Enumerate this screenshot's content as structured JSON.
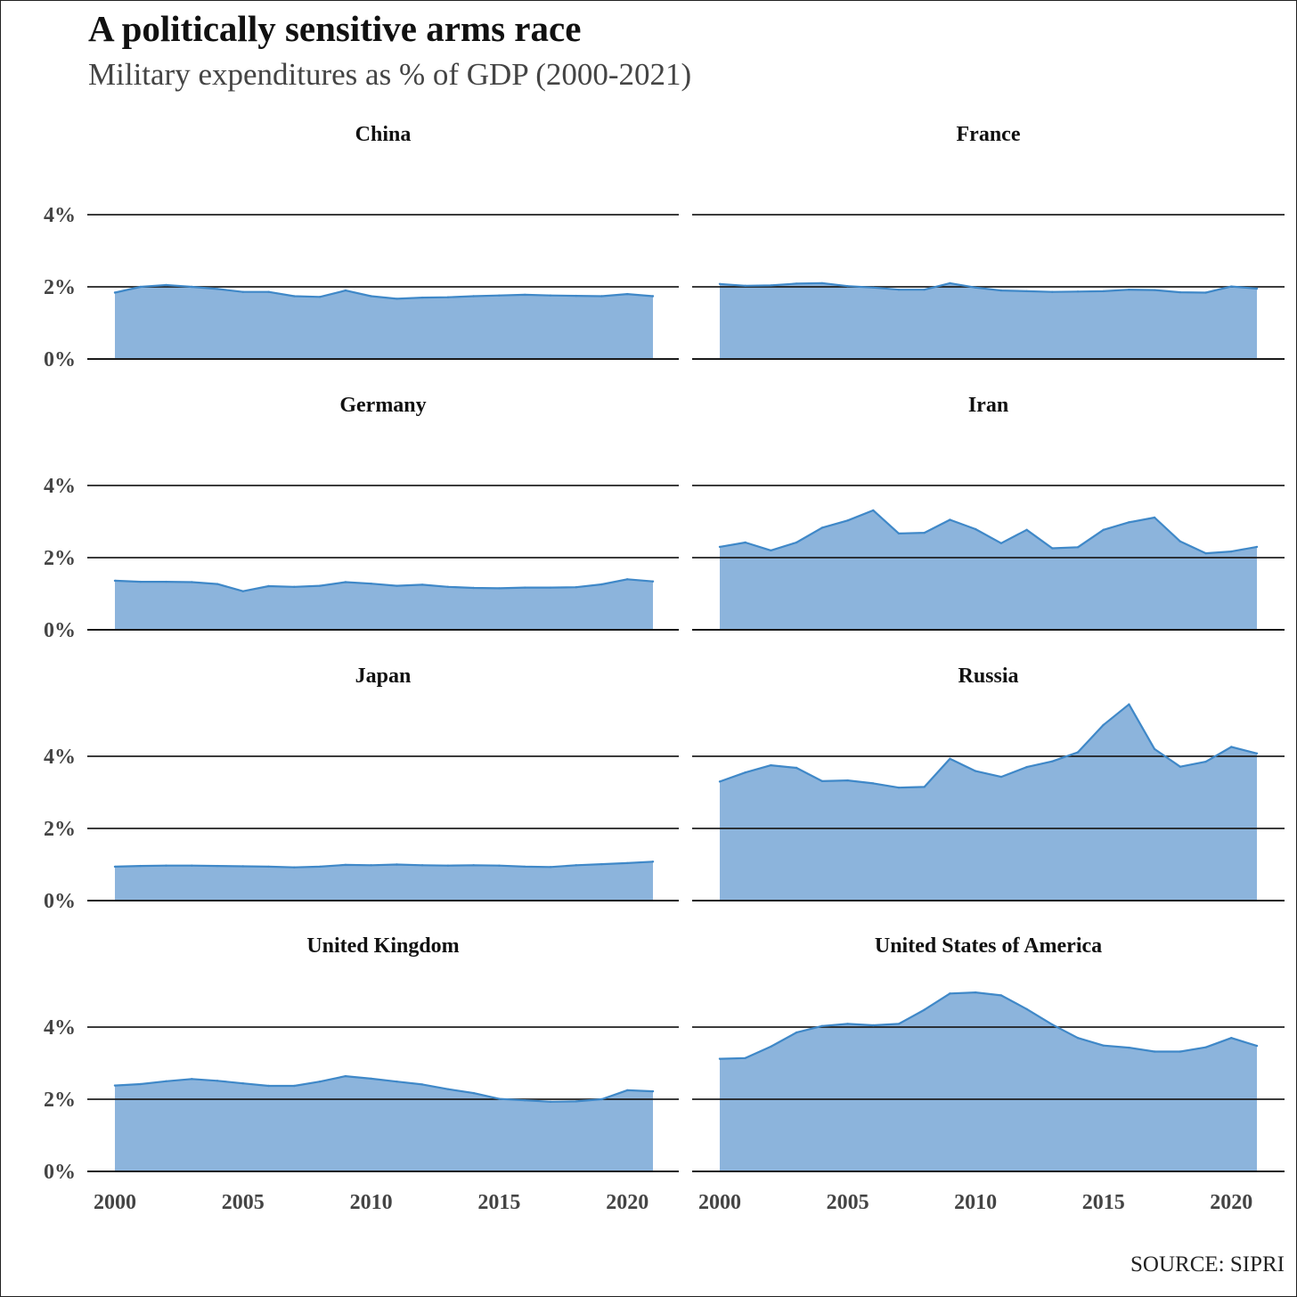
{
  "title": "A politically sensitive arms race",
  "subtitle": "Military expenditures as % of GDP (2000-2021)",
  "source": "SOURCE: SIPRI",
  "colors": {
    "area": "#8cb4dc",
    "line": "#3f88c8",
    "grid": "#1a1a1a"
  },
  "chart_data": {
    "type": "area",
    "layout": "facet-grid-2-columns",
    "x": [
      2000,
      2001,
      2002,
      2003,
      2004,
      2005,
      2006,
      2007,
      2008,
      2009,
      2010,
      2011,
      2012,
      2013,
      2014,
      2015,
      2016,
      2017,
      2018,
      2019,
      2020,
      2021
    ],
    "x_ticks": [
      2000,
      2005,
      2010,
      2015,
      2020
    ],
    "x_tick_labels": [
      "2000",
      "2005",
      "2010",
      "2015",
      "2020"
    ],
    "ylim": [
      0,
      4
    ],
    "y_ticks": [
      0,
      2,
      4
    ],
    "y_tick_labels": [
      "0%",
      "2%",
      "4%"
    ],
    "grid": true,
    "panels": [
      {
        "name": "China",
        "values": [
          1.84,
          2.0,
          2.05,
          2.0,
          1.94,
          1.86,
          1.86,
          1.74,
          1.72,
          1.9,
          1.74,
          1.67,
          1.7,
          1.71,
          1.74,
          1.76,
          1.78,
          1.76,
          1.75,
          1.74,
          1.8,
          1.74
        ]
      },
      {
        "name": "France",
        "values": [
          2.08,
          2.03,
          2.04,
          2.09,
          2.1,
          2.02,
          1.98,
          1.92,
          1.92,
          2.1,
          1.98,
          1.9,
          1.88,
          1.86,
          1.87,
          1.88,
          1.92,
          1.91,
          1.85,
          1.84,
          2.01,
          1.95
        ]
      },
      {
        "name": "Germany",
        "values": [
          1.36,
          1.33,
          1.33,
          1.32,
          1.27,
          1.07,
          1.21,
          1.19,
          1.22,
          1.32,
          1.28,
          1.22,
          1.25,
          1.19,
          1.16,
          1.15,
          1.17,
          1.17,
          1.18,
          1.26,
          1.4,
          1.34
        ]
      },
      {
        "name": "Iran",
        "values": [
          2.3,
          2.42,
          2.2,
          2.42,
          2.83,
          3.03,
          3.31,
          2.67,
          2.69,
          3.05,
          2.79,
          2.4,
          2.77,
          2.26,
          2.29,
          2.77,
          2.98,
          3.11,
          2.45,
          2.12,
          2.17,
          2.3
        ]
      },
      {
        "name": "Japan",
        "values": [
          0.94,
          0.96,
          0.97,
          0.97,
          0.96,
          0.95,
          0.94,
          0.92,
          0.94,
          0.99,
          0.98,
          1.0,
          0.98,
          0.97,
          0.98,
          0.97,
          0.94,
          0.93,
          0.98,
          1.01,
          1.04,
          1.08
        ]
      },
      {
        "name": "Russia",
        "values": [
          3.3,
          3.55,
          3.75,
          3.68,
          3.31,
          3.33,
          3.25,
          3.13,
          3.15,
          3.93,
          3.59,
          3.43,
          3.7,
          3.86,
          4.11,
          4.87,
          5.44,
          4.2,
          3.71,
          3.85,
          4.26,
          4.08
        ]
      },
      {
        "name": "United Kingdom",
        "values": [
          2.38,
          2.42,
          2.5,
          2.56,
          2.51,
          2.44,
          2.37,
          2.37,
          2.49,
          2.64,
          2.57,
          2.49,
          2.41,
          2.28,
          2.17,
          2.01,
          1.97,
          1.93,
          1.94,
          2.0,
          2.25,
          2.22
        ]
      },
      {
        "name": "United States of America",
        "values": [
          3.12,
          3.14,
          3.46,
          3.85,
          4.03,
          4.09,
          4.05,
          4.09,
          4.48,
          4.93,
          4.96,
          4.88,
          4.5,
          4.07,
          3.7,
          3.49,
          3.43,
          3.32,
          3.32,
          3.44,
          3.7,
          3.48
        ]
      }
    ]
  }
}
